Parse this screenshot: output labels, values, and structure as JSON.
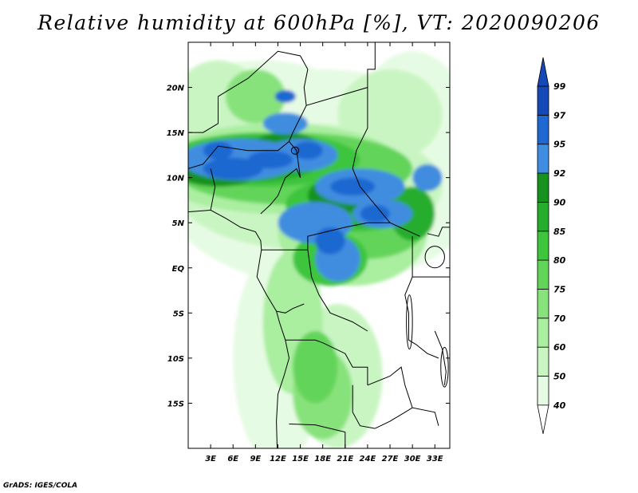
{
  "title": "Relative humidity at 600hPa [%], VT: 2020090206",
  "credit": "GrADS: IGES/COLA",
  "colors": {
    "c40": "#ffffff",
    "c50": "#e6fbe3",
    "c60": "#c9f5c2",
    "c70": "#aaeea0",
    "c75": "#88e27c",
    "c80": "#63d45a",
    "c85": "#3ec53c",
    "c90": "#27ad2d",
    "c92": "#18921f",
    "c95": "#3f8de0",
    "c97": "#1f68d1",
    "c99": "#1549b8",
    "border": "#000000"
  },
  "map": {
    "lon_range": [
      0,
      35
    ],
    "lat_range": [
      -20,
      25
    ],
    "lon_ticks": [
      {
        "value": 3,
        "label": "3E"
      },
      {
        "value": 6,
        "label": "6E"
      },
      {
        "value": 9,
        "label": "9E"
      },
      {
        "value": 12,
        "label": "12E"
      },
      {
        "value": 15,
        "label": "15E"
      },
      {
        "value": 18,
        "label": "18E"
      },
      {
        "value": 21,
        "label": "21E"
      },
      {
        "value": 24,
        "label": "24E"
      },
      {
        "value": 27,
        "label": "27E"
      },
      {
        "value": 30,
        "label": "30E"
      },
      {
        "value": 33,
        "label": "33E"
      }
    ],
    "lat_ticks": [
      {
        "value": 20,
        "label": "20N"
      },
      {
        "value": 15,
        "label": "15N"
      },
      {
        "value": 10,
        "label": "10N"
      },
      {
        "value": 5,
        "label": "5N"
      },
      {
        "value": 0,
        "label": "EQ"
      },
      {
        "value": -5,
        "label": "5S"
      },
      {
        "value": -10,
        "label": "10S"
      },
      {
        "value": -15,
        "label": "15S"
      }
    ]
  },
  "colorbar": {
    "labels": [
      "40",
      "50",
      "60",
      "70",
      "75",
      "80",
      "85",
      "90",
      "92",
      "95",
      "97",
      "99"
    ]
  }
}
